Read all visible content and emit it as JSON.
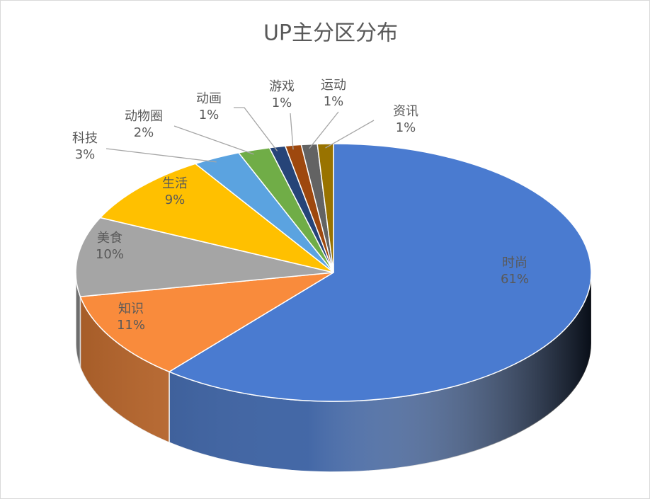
{
  "chart_data": {
    "type": "pie3d",
    "title": "UP主分区分布",
    "categories": [
      "时尚",
      "知识",
      "美食",
      "生活",
      "科技",
      "动物圈",
      "动画",
      "游戏",
      "运动",
      "资讯"
    ],
    "values": [
      61,
      11,
      10,
      9,
      3,
      2,
      1,
      1,
      1,
      1
    ],
    "value_labels": [
      "61%",
      "11%",
      "10%",
      "9%",
      "3%",
      "2%",
      "1%",
      "1%",
      "1%",
      "1%"
    ],
    "colors": [
      "#4a7bd0",
      "#f98b3c",
      "#a5a5a5",
      "#ffc000",
      "#5ba3e0",
      "#70ad47",
      "#264478",
      "#9e480e",
      "#636363",
      "#997300"
    ]
  }
}
